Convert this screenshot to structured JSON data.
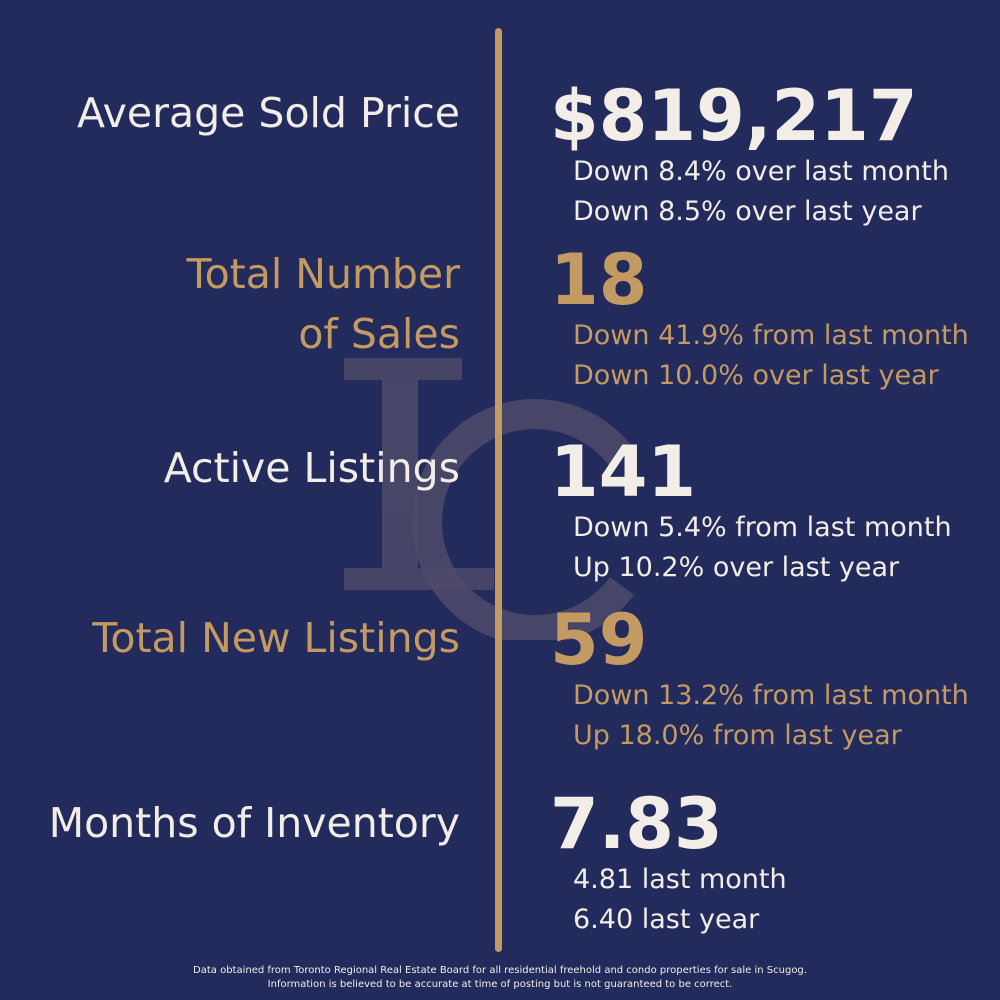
{
  "colors": {
    "background": "#232a5c",
    "gold": "#c39a62",
    "cream": "#f2ede6"
  },
  "icons": {
    "watermark": "lc-monogram-icon"
  },
  "stats": [
    {
      "label": "Average Sold Price",
      "value": "$819,217",
      "notes": [
        "Down 8.4% over last month",
        "Down 8.5% over last year"
      ],
      "color": "cream"
    },
    {
      "label_lines": [
        "Total Number",
        "of Sales"
      ],
      "value": "18",
      "notes": [
        "Down 41.9% from last month",
        "Down 10.0% over last year"
      ],
      "color": "gold"
    },
    {
      "label": "Active Listings",
      "value": "141",
      "notes": [
        "Down 5.4% from last month",
        "Up 10.2% over last year"
      ],
      "color": "cream"
    },
    {
      "label": "Total New Listings",
      "value": "59",
      "notes": [
        "Down 13.2% from last month",
        "Up 18.0% from last year"
      ],
      "color": "gold"
    },
    {
      "label": "Months of Inventory",
      "value": "7.83",
      "notes": [
        "4.81 last month",
        "6.40 last year"
      ],
      "color": "cream"
    }
  ],
  "footer": {
    "line1": "Data obtained from Toronto Regional Real Estate Board for all residential freehold and condo properties for sale in Scugog.",
    "line2": "Information is believed to be accurate at time of posting but is not guaranteed to be correct."
  }
}
